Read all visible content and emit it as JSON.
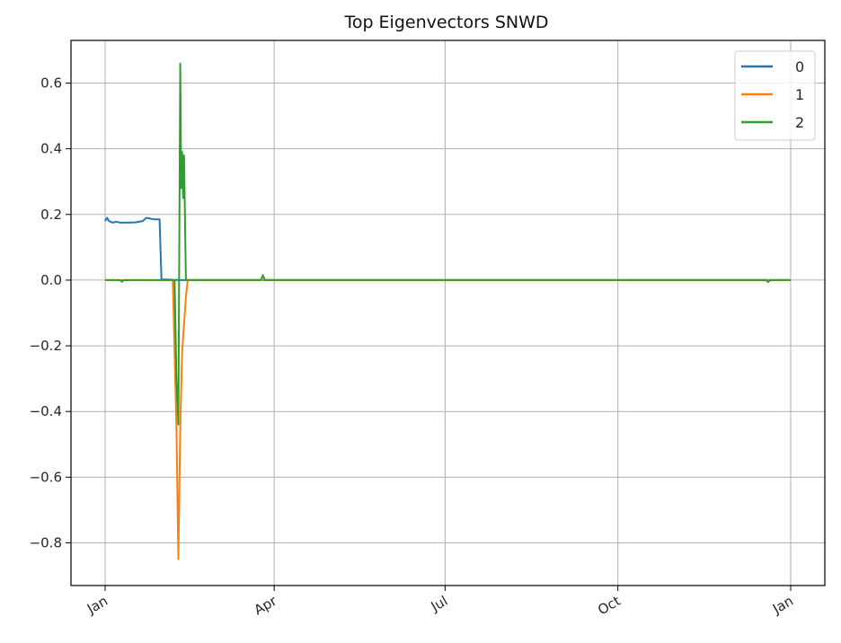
{
  "chart_data": {
    "type": "line",
    "title": "Top Eigenvectors SNWD",
    "xlabel": "",
    "ylabel": "",
    "x_domain_days": [
      0,
      365
    ],
    "ylim": [
      -0.93,
      0.73
    ],
    "yticks": [
      0.6,
      0.4,
      0.2,
      0.0,
      -0.2,
      -0.4,
      -0.6,
      -0.8
    ],
    "ytick_labels": [
      "0.6",
      "0.4",
      "0.2",
      "0.0",
      "−0.2",
      "−0.4",
      "−0.6",
      "−0.8"
    ],
    "xticks": [
      {
        "day": 0,
        "label": "Jan"
      },
      {
        "day": 90,
        "label": "Apr"
      },
      {
        "day": 181,
        "label": "Jul"
      },
      {
        "day": 273,
        "label": "Oct"
      },
      {
        "day": 365,
        "label": "Jan"
      }
    ],
    "grid": true,
    "legend_position": "top-right",
    "series": [
      {
        "name": "0",
        "color": "#1f77b4",
        "points": [
          [
            0,
            0.18
          ],
          [
            1,
            0.19
          ],
          [
            2,
            0.18
          ],
          [
            4,
            0.175
          ],
          [
            6,
            0.178
          ],
          [
            8,
            0.175
          ],
          [
            12,
            0.175
          ],
          [
            16,
            0.176
          ],
          [
            20,
            0.18
          ],
          [
            22,
            0.19
          ],
          [
            26,
            0.185
          ],
          [
            29,
            0.185
          ],
          [
            30,
            0.002
          ],
          [
            34,
            0.002
          ],
          [
            36,
            0.001
          ],
          [
            40,
            0.0
          ],
          [
            90,
            0.0
          ],
          [
            200,
            0.0
          ],
          [
            300,
            0.0
          ],
          [
            365,
            0.0
          ]
        ]
      },
      {
        "name": "1",
        "color": "#ff7f0e",
        "points": [
          [
            0,
            0.0
          ],
          [
            36,
            0.0
          ],
          [
            38,
            -0.45
          ],
          [
            39,
            -0.85
          ],
          [
            40,
            -0.45
          ],
          [
            41,
            -0.22
          ],
          [
            43,
            -0.05
          ],
          [
            44,
            0.0
          ],
          [
            90,
            0.0
          ],
          [
            200,
            0.0
          ],
          [
            300,
            0.0
          ],
          [
            365,
            0.0
          ]
        ]
      },
      {
        "name": "2",
        "color": "#2ca02c",
        "points": [
          [
            0,
            0.0
          ],
          [
            8,
            0.0
          ],
          [
            9,
            -0.005
          ],
          [
            10,
            0.0
          ],
          [
            37,
            0.0
          ],
          [
            38,
            -0.3
          ],
          [
            39,
            -0.44
          ],
          [
            40,
            0.66
          ],
          [
            40.5,
            0.28
          ],
          [
            41,
            0.39
          ],
          [
            41.5,
            0.25
          ],
          [
            42,
            0.38
          ],
          [
            43,
            0.0
          ],
          [
            83,
            0.0
          ],
          [
            84,
            0.015
          ],
          [
            85,
            0.0
          ],
          [
            200,
            0.0
          ],
          [
            300,
            0.0
          ],
          [
            352,
            0.0
          ],
          [
            353,
            -0.006
          ],
          [
            354,
            0.0
          ],
          [
            365,
            0.0
          ]
        ]
      }
    ]
  }
}
